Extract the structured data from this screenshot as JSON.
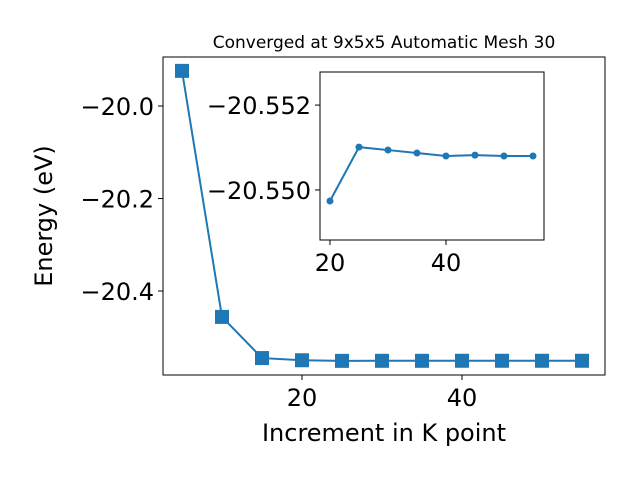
{
  "chart_data": [
    {
      "type": "line",
      "title": "Converged at 9x5x5 Automatic Mesh 30",
      "xlabel": "Increment in K point",
      "ylabel": "Energy (eV)",
      "x": [
        5,
        10,
        15,
        20,
        25,
        30,
        35,
        40,
        45,
        50,
        55
      ],
      "series": [
        {
          "color": "#1f77b4",
          "marker": "square",
          "values": [
            -19.924,
            -20.456,
            -20.545,
            -20.5497,
            -20.551,
            -20.5509,
            -20.5509,
            -20.5508,
            -20.5508,
            -20.5508,
            -20.5508
          ]
        }
      ],
      "xlim": [
        2.625,
        57.875
      ],
      "ylim": [
        -20.5816,
        -19.894
      ],
      "xticks": [
        20,
        40
      ],
      "yticks": [
        {
          "value": -20.0,
          "label": "−20.0"
        },
        {
          "value": -20.2,
          "label": "−20.2"
        },
        {
          "value": -20.4,
          "label": "−20.4"
        }
      ]
    },
    {
      "type": "line",
      "x": [
        20,
        25,
        30,
        35,
        40,
        45,
        50,
        55
      ],
      "series": [
        {
          "color": "#1f77b4",
          "marker": "circle",
          "values": [
            -20.54974,
            -20.55101,
            -20.55094,
            -20.55087,
            -20.5508,
            -20.55082,
            -20.5508,
            -20.5508
          ]
        }
      ],
      "xlim": [
        18.28,
        56.9
      ],
      "ylim": [
        -20.54882,
        -20.55278
      ],
      "xticks": [
        20,
        40
      ],
      "yticks": [
        {
          "value": -20.552,
          "label": "−20.552"
        },
        {
          "value": -20.55,
          "label": "−20.550"
        }
      ]
    }
  ]
}
